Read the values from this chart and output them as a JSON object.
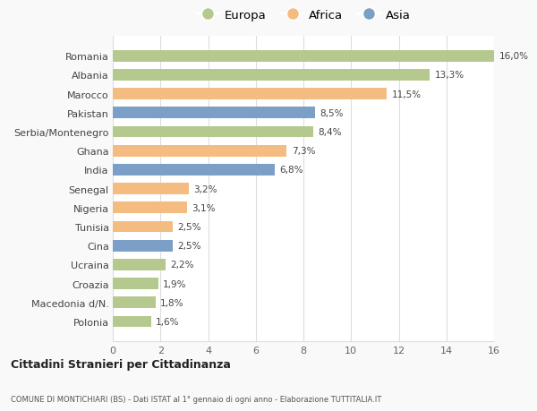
{
  "countries": [
    "Polonia",
    "Macedonia d/N.",
    "Croazia",
    "Ucraina",
    "Cina",
    "Tunisia",
    "Nigeria",
    "Senegal",
    "India",
    "Ghana",
    "Serbia/Montenegro",
    "Pakistan",
    "Marocco",
    "Albania",
    "Romania"
  ],
  "values": [
    1.6,
    1.8,
    1.9,
    2.2,
    2.5,
    2.5,
    3.1,
    3.2,
    6.8,
    7.3,
    8.4,
    8.5,
    11.5,
    13.3,
    16.0
  ],
  "labels": [
    "1,6%",
    "1,8%",
    "1,9%",
    "2,2%",
    "2,5%",
    "2,5%",
    "3,1%",
    "3,2%",
    "6,8%",
    "7,3%",
    "8,4%",
    "8,5%",
    "11,5%",
    "13,3%",
    "16,0%"
  ],
  "colors": [
    "#b5c98e",
    "#b5c98e",
    "#b5c98e",
    "#b5c98e",
    "#7b9fc7",
    "#f5bc82",
    "#f5bc82",
    "#f5bc82",
    "#7b9fc7",
    "#f5bc82",
    "#b5c98e",
    "#7b9fc7",
    "#f5bc82",
    "#b5c98e",
    "#b5c98e"
  ],
  "continent_colors": {
    "Europa": "#b5c98e",
    "Africa": "#f5bc82",
    "Asia": "#7b9fc7"
  },
  "title1": "Cittadini Stranieri per Cittadinanza",
  "title2": "COMUNE DI MONTICHIARI (BS) - Dati ISTAT al 1° gennaio di ogni anno - Elaborazione TUTTITALIA.IT",
  "xlim": [
    0,
    16
  ],
  "xticks": [
    0,
    2,
    4,
    6,
    8,
    10,
    12,
    14,
    16
  ],
  "background_color": "#f9f9f9",
  "bar_background": "#ffffff",
  "grid_color": "#dddddd",
  "bar_height": 0.6
}
